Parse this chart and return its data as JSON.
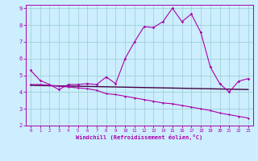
{
  "xlabel": "Windchill (Refroidissement éolien,°C)",
  "background_color": "#cceeff",
  "line_color": "#aa00aa",
  "line_color_dark": "#440044",
  "xlim": [
    -0.5,
    23.5
  ],
  "ylim": [
    2,
    9.2
  ],
  "xticks": [
    0,
    1,
    2,
    3,
    4,
    5,
    6,
    7,
    8,
    9,
    10,
    11,
    12,
    13,
    14,
    15,
    16,
    17,
    18,
    19,
    20,
    21,
    22,
    23
  ],
  "yticks": [
    2,
    3,
    4,
    5,
    6,
    7,
    8,
    9
  ],
  "series1_x": [
    0,
    1,
    2,
    3,
    4,
    5,
    6,
    7,
    8,
    9,
    10,
    11,
    12,
    13,
    14,
    15,
    16,
    17,
    18,
    19,
    20,
    21,
    22,
    23
  ],
  "series1_y": [
    5.3,
    4.7,
    4.45,
    4.15,
    4.45,
    4.45,
    4.5,
    4.45,
    4.9,
    4.5,
    6.0,
    7.0,
    7.9,
    7.85,
    8.2,
    9.0,
    8.2,
    8.65,
    7.55,
    5.5,
    4.5,
    4.0,
    4.65,
    4.8
  ],
  "series2_x": [
    0,
    1,
    2,
    3,
    4,
    5,
    6,
    7,
    8,
    9,
    10,
    11,
    12,
    13,
    14,
    15,
    16,
    17,
    18,
    19,
    20,
    21,
    22,
    23
  ],
  "series2_y": [
    4.45,
    4.45,
    4.4,
    4.35,
    4.3,
    4.25,
    4.2,
    4.1,
    3.9,
    3.85,
    3.75,
    3.65,
    3.55,
    3.45,
    3.35,
    3.3,
    3.2,
    3.1,
    3.0,
    2.9,
    2.75,
    2.65,
    2.55,
    2.45
  ],
  "series3_x": [
    0,
    23
  ],
  "series3_y": [
    4.4,
    4.15
  ]
}
